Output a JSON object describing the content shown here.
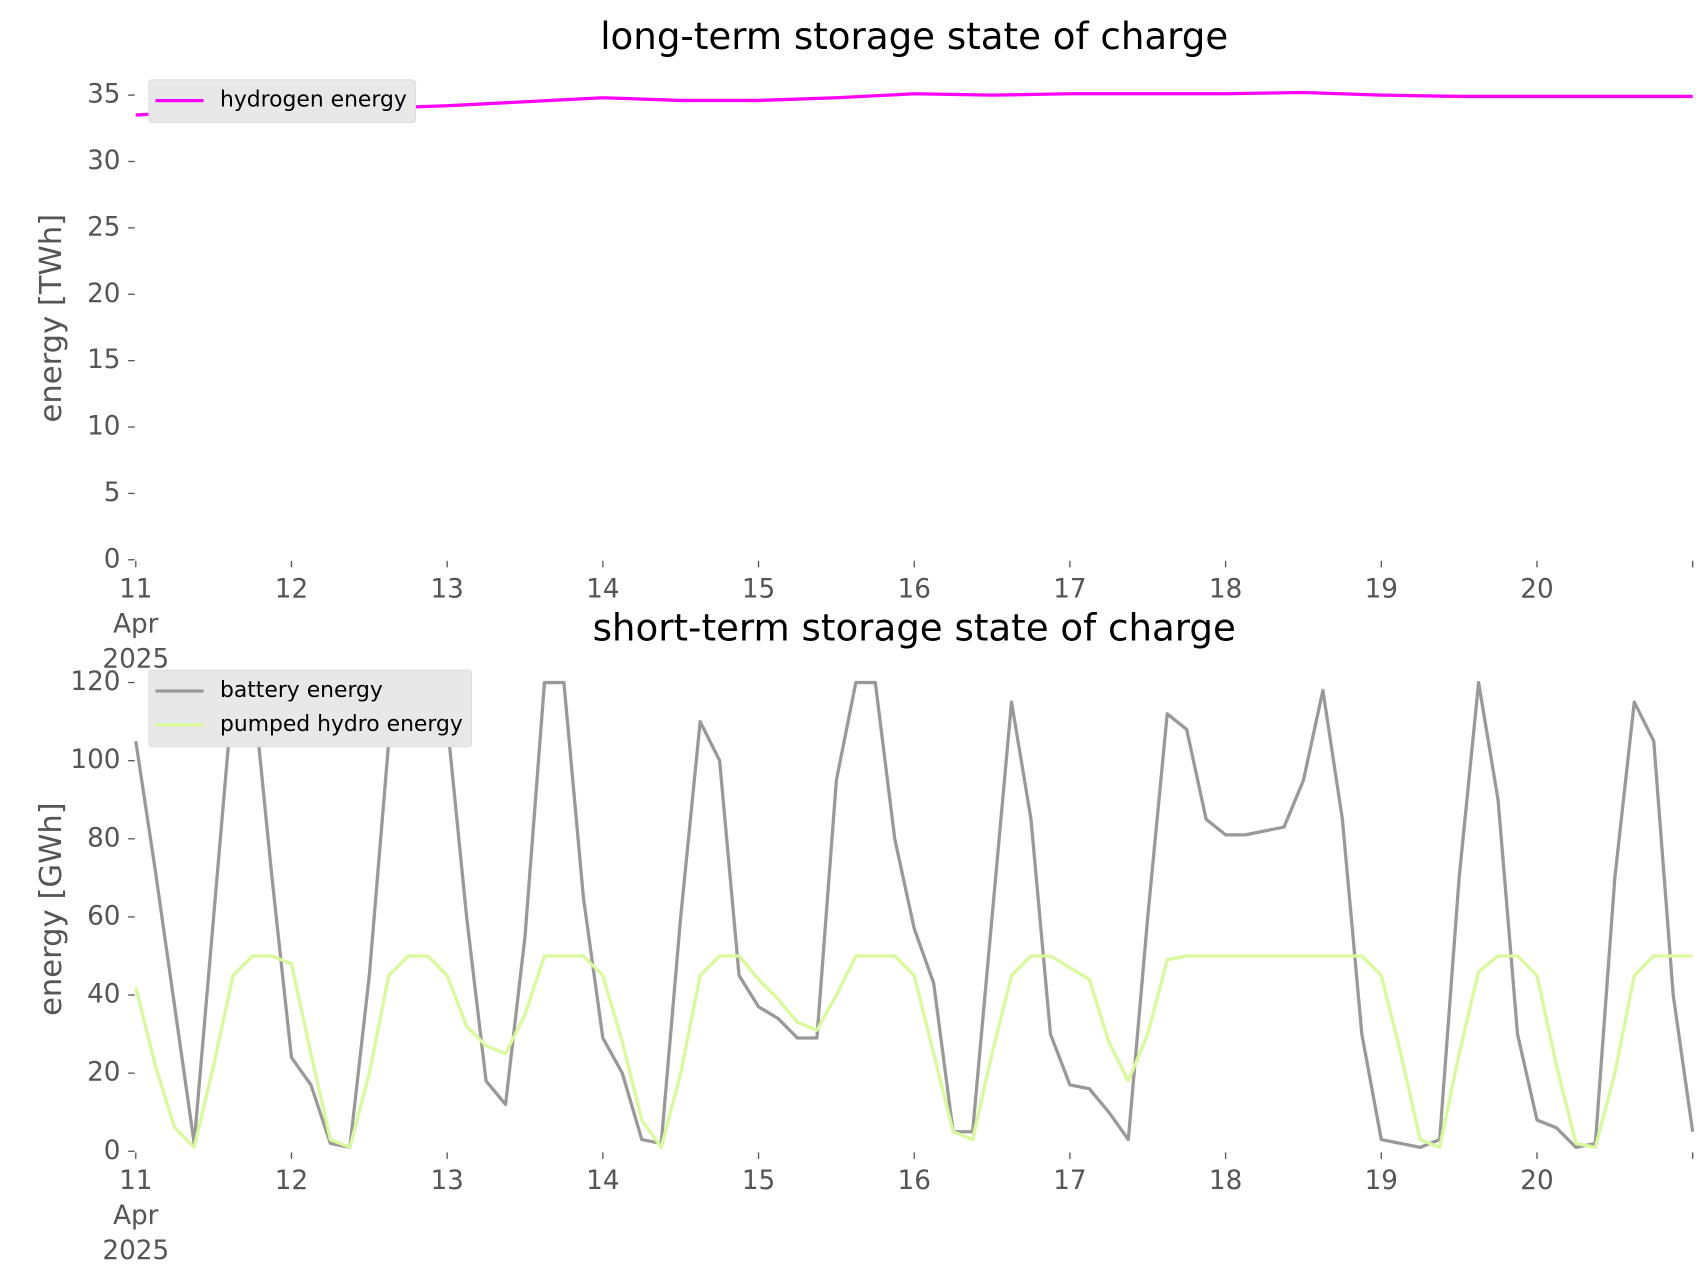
{
  "chart_data": [
    {
      "type": "line",
      "title": "long-term storage state of charge",
      "y_label": "energy [TWh]",
      "x": [
        "2025-04-11 00:00",
        "2025-04-11 12:00",
        "2025-04-12 00:00",
        "2025-04-12 12:00",
        "2025-04-13 00:00",
        "2025-04-13 12:00",
        "2025-04-14 00:00",
        "2025-04-14 12:00",
        "2025-04-15 00:00",
        "2025-04-15 12:00",
        "2025-04-16 00:00",
        "2025-04-16 12:00",
        "2025-04-17 00:00",
        "2025-04-17 12:00",
        "2025-04-18 00:00",
        "2025-04-18 12:00",
        "2025-04-19 00:00",
        "2025-04-19 12:00",
        "2025-04-20 00:00",
        "2025-04-20 12:00",
        "2025-04-21 00:00"
      ],
      "series": [
        {
          "name": "hydrogen energy",
          "color": "#ff00ff",
          "values": [
            33.5,
            33.8,
            34.1,
            34.0,
            34.2,
            34.5,
            34.8,
            34.6,
            34.6,
            34.8,
            35.1,
            35.0,
            35.1,
            35.1,
            35.1,
            35.2,
            35.0,
            34.9,
            34.9,
            34.9,
            34.9
          ]
        }
      ],
      "xlim": [
        "2025-04-11 00:00",
        "2025-04-21 00:00"
      ],
      "xticks": [
        {
          "value": "2025-04-11 00:00",
          "label": "11\nApr\n2025"
        },
        {
          "value": "2025-04-12 00:00",
          "label": "12"
        },
        {
          "value": "2025-04-13 00:00",
          "label": "13"
        },
        {
          "value": "2025-04-14 00:00",
          "label": "14"
        },
        {
          "value": "2025-04-15 00:00",
          "label": "15"
        },
        {
          "value": "2025-04-16 00:00",
          "label": "16"
        },
        {
          "value": "2025-04-17 00:00",
          "label": "17"
        },
        {
          "value": "2025-04-18 00:00",
          "label": "18"
        },
        {
          "value": "2025-04-19 00:00",
          "label": "19"
        },
        {
          "value": "2025-04-20 00:00",
          "label": "20"
        }
      ],
      "ylim": [
        0,
        36.4
      ],
      "yticks": [
        0,
        5,
        10,
        15,
        20,
        25,
        30,
        35
      ],
      "grid": false,
      "legend": "upper left"
    },
    {
      "type": "line",
      "title": "short-term storage state of charge",
      "y_label": "energy [GWh]",
      "x": [
        "2025-04-11 00:00",
        "2025-04-11 03:00",
        "2025-04-11 06:00",
        "2025-04-11 09:00",
        "2025-04-11 12:00",
        "2025-04-11 15:00",
        "2025-04-11 18:00",
        "2025-04-11 21:00",
        "2025-04-12 00:00",
        "2025-04-12 03:00",
        "2025-04-12 06:00",
        "2025-04-12 09:00",
        "2025-04-12 12:00",
        "2025-04-12 15:00",
        "2025-04-12 18:00",
        "2025-04-12 21:00",
        "2025-04-13 00:00",
        "2025-04-13 03:00",
        "2025-04-13 06:00",
        "2025-04-13 09:00",
        "2025-04-13 12:00",
        "2025-04-13 15:00",
        "2025-04-13 18:00",
        "2025-04-13 21:00",
        "2025-04-14 00:00",
        "2025-04-14 03:00",
        "2025-04-14 06:00",
        "2025-04-14 09:00",
        "2025-04-14 12:00",
        "2025-04-14 15:00",
        "2025-04-14 18:00",
        "2025-04-14 21:00",
        "2025-04-15 00:00",
        "2025-04-15 03:00",
        "2025-04-15 06:00",
        "2025-04-15 09:00",
        "2025-04-15 12:00",
        "2025-04-15 15:00",
        "2025-04-15 18:00",
        "2025-04-15 21:00",
        "2025-04-16 00:00",
        "2025-04-16 03:00",
        "2025-04-16 06:00",
        "2025-04-16 09:00",
        "2025-04-16 12:00",
        "2025-04-16 15:00",
        "2025-04-16 18:00",
        "2025-04-16 21:00",
        "2025-04-17 00:00",
        "2025-04-17 03:00",
        "2025-04-17 06:00",
        "2025-04-17 09:00",
        "2025-04-17 12:00",
        "2025-04-17 15:00",
        "2025-04-17 18:00",
        "2025-04-17 21:00",
        "2025-04-18 00:00",
        "2025-04-18 03:00",
        "2025-04-18 06:00",
        "2025-04-18 09:00",
        "2025-04-18 12:00",
        "2025-04-18 15:00",
        "2025-04-18 18:00",
        "2025-04-18 21:00",
        "2025-04-19 00:00",
        "2025-04-19 03:00",
        "2025-04-19 06:00",
        "2025-04-19 09:00",
        "2025-04-19 12:00",
        "2025-04-19 15:00",
        "2025-04-19 18:00",
        "2025-04-19 21:00",
        "2025-04-20 00:00",
        "2025-04-20 03:00",
        "2025-04-20 06:00",
        "2025-04-20 09:00",
        "2025-04-20 12:00",
        "2025-04-20 15:00",
        "2025-04-20 18:00",
        "2025-04-20 21:00",
        "2025-04-21 00:00"
      ],
      "series": [
        {
          "name": "battery energy",
          "color": "#999999",
          "values": [
            105,
            72,
            37,
            2,
            60,
            118,
            120,
            70,
            24,
            17,
            2,
            1,
            45,
            105,
            120,
            110,
            110,
            60,
            18,
            12,
            55,
            120,
            120,
            65,
            29,
            20,
            3,
            2,
            60,
            110,
            100,
            45,
            37,
            34,
            29,
            29,
            95,
            120,
            120,
            80,
            57,
            43,
            5,
            5,
            60,
            115,
            85,
            30,
            17,
            16,
            10,
            3,
            60,
            112,
            108,
            85,
            81,
            81,
            82,
            83,
            95,
            118,
            85,
            30,
            3,
            2,
            1,
            3,
            70,
            120,
            90,
            30,
            8,
            6,
            1,
            2,
            70,
            115,
            105,
            40,
            5
          ]
        },
        {
          "name": "pumped hydro energy",
          "color": "#d9f99d",
          "values": [
            42,
            22,
            6,
            1,
            22,
            45,
            50,
            50,
            48,
            25,
            3,
            1,
            20,
            45,
            50,
            50,
            45,
            32,
            27,
            25,
            35,
            50,
            50,
            50,
            45,
            28,
            8,
            1,
            20,
            45,
            50,
            50,
            44,
            39,
            33,
            31,
            40,
            50,
            50,
            50,
            45,
            25,
            5,
            3,
            25,
            45,
            50,
            50,
            47,
            44,
            28,
            18,
            30,
            49,
            50,
            50,
            50,
            50,
            50,
            50,
            50,
            50,
            50,
            50,
            45,
            25,
            3,
            1,
            25,
            46,
            50,
            50,
            45,
            22,
            2,
            1,
            20,
            45,
            50,
            50,
            50
          ]
        }
      ],
      "xlim": [
        "2025-04-11 00:00",
        "2025-04-21 00:00"
      ],
      "xticks": [
        {
          "value": "2025-04-11 00:00",
          "label": "11\nApr\n2025"
        },
        {
          "value": "2025-04-12 00:00",
          "label": "12"
        },
        {
          "value": "2025-04-13 00:00",
          "label": "13"
        },
        {
          "value": "2025-04-14 00:00",
          "label": "14"
        },
        {
          "value": "2025-04-15 00:00",
          "label": "15"
        },
        {
          "value": "2025-04-16 00:00",
          "label": "16"
        },
        {
          "value": "2025-04-17 00:00",
          "label": "17"
        },
        {
          "value": "2025-04-18 00:00",
          "label": "18"
        },
        {
          "value": "2025-04-19 00:00",
          "label": "19"
        },
        {
          "value": "2025-04-20 00:00",
          "label": "20"
        }
      ],
      "ylim": [
        0,
        124
      ],
      "yticks": [
        0,
        20,
        40,
        60,
        80,
        100,
        120
      ],
      "grid": false,
      "legend": "upper left"
    }
  ]
}
